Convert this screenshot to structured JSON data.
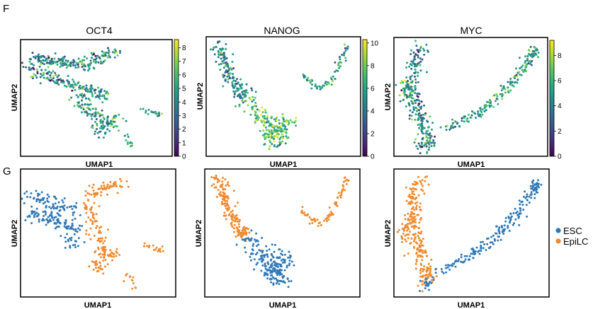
{
  "panel_labels": [
    "F",
    "G"
  ],
  "chart_data": [
    {
      "type": "scatter",
      "title": "OCT4",
      "xlabel": "UMAP1",
      "ylabel": "UMAP2",
      "colorbar": {
        "ticks": [
          0,
          1,
          2,
          3,
          4,
          5,
          6,
          7,
          8
        ],
        "range": [
          0,
          8.6
        ],
        "colormap": "viridis"
      },
      "clusters": [
        {
          "points": [
            [
              -5.5,
              6.2
            ],
            [
              -5.0,
              5.9
            ],
            [
              -4.4,
              6.3
            ],
            [
              -3.8,
              5.6
            ],
            [
              -3.2,
              6.0
            ],
            [
              -2.6,
              5.4
            ],
            [
              -2.0,
              5.8
            ],
            [
              -1.3,
              5.2
            ],
            [
              -0.7,
              5.5
            ],
            [
              0.0,
              5.0
            ],
            [
              0.6,
              5.6
            ],
            [
              1.2,
              6.3
            ],
            [
              1.9,
              6.8
            ],
            [
              2.6,
              7.0
            ]
          ],
          "spread": 0.45,
          "density": 14,
          "value_mean": 4.2,
          "value_sd": 1.5
        },
        {
          "points": [
            [
              -6.0,
              4.8
            ],
            [
              -5.2,
              4.2
            ],
            [
              -4.4,
              3.6
            ],
            [
              -3.6,
              3.2
            ],
            [
              -2.8,
              2.8
            ],
            [
              -2.0,
              2.4
            ],
            [
              -1.2,
              2.0
            ],
            [
              -0.3,
              1.8
            ],
            [
              0.4,
              1.4
            ],
            [
              1.1,
              1.0
            ],
            [
              1.8,
              0.6
            ]
          ],
          "spread": 0.45,
          "density": 14,
          "value_mean": 4.4,
          "value_sd": 1.6
        },
        {
          "points": [
            [
              -1.0,
              1.0
            ],
            [
              -0.6,
              0.0
            ],
            [
              -0.2,
              -1.0
            ],
            [
              0.3,
              -1.8
            ],
            [
              0.8,
              -2.6
            ],
            [
              1.4,
              -3.0
            ],
            [
              2.0,
              -3.4
            ],
            [
              2.6,
              -3.0
            ],
            [
              3.0,
              -3.6
            ],
            [
              1.0,
              -4.2
            ],
            [
              1.6,
              -4.6
            ]
          ],
          "spread": 0.45,
          "density": 13,
          "value_mean": 4.8,
          "value_sd": 1.4
        },
        {
          "points": [
            [
              5.9,
              -1.4
            ],
            [
              6.3,
              -1.7
            ],
            [
              6.8,
              -1.9
            ],
            [
              7.2,
              -2.1
            ],
            [
              7.6,
              -2.3
            ]
          ],
          "spread": 0.15,
          "density": 4,
          "value_mean": 5.3,
          "value_sd": 1.0
        },
        {
          "points": [
            [
              4.0,
              -5.4
            ],
            [
              4.3,
              -6.2
            ],
            [
              4.6,
              -7.0
            ]
          ],
          "spread": 0.2,
          "density": 4,
          "value_mean": 5.5,
          "value_sd": 1.0
        }
      ],
      "domain": {
        "x": [
          -6.6,
          8.5
        ],
        "y": [
          -8.0,
          8.5
        ]
      }
    },
    {
      "type": "scatter",
      "title": "NANOG",
      "xlabel": "UMAP1",
      "ylabel": "UMAP2",
      "colorbar": {
        "ticks": [
          0,
          2,
          4,
          6,
          8,
          10
        ],
        "range": [
          0,
          10.3
        ],
        "colormap": "viridis"
      },
      "clusters": [
        {
          "points": [
            [
              -6.3,
              6.7
            ],
            [
              -6.0,
              6.0
            ],
            [
              -5.7,
              5.2
            ],
            [
              -5.5,
              4.3
            ],
            [
              -5.2,
              3.5
            ],
            [
              -4.9,
              2.7
            ],
            [
              -4.5,
              2.0
            ],
            [
              -4.1,
              1.4
            ],
            [
              -3.7,
              0.8
            ],
            [
              -3.4,
              0.2
            ]
          ],
          "spread": 0.42,
          "density": 16,
          "value_mean": 4.8,
          "value_sd": 1.6
        },
        {
          "points": [
            [
              -2.8,
              -0.4
            ],
            [
              -2.2,
              -1.4
            ],
            [
              -1.6,
              -2.4
            ],
            [
              -1.0,
              -3.3
            ],
            [
              -0.4,
              -4.3
            ],
            [
              0.2,
              -5.0
            ],
            [
              0.8,
              -5.7
            ],
            [
              -0.1,
              -3.8
            ],
            [
              0.9,
              -3.9
            ],
            [
              -0.7,
              -4.9
            ],
            [
              0.3,
              -2.6
            ],
            [
              1.2,
              -3.0
            ]
          ],
          "spread": 0.55,
          "density": 18,
          "value_mean": 7.5,
          "value_sd": 1.7
        },
        {
          "points": [
            [
              3.1,
              3.0
            ],
            [
              3.7,
              2.3
            ],
            [
              4.3,
              1.7
            ],
            [
              5.0,
              1.4
            ],
            [
              5.7,
              1.9
            ],
            [
              6.3,
              2.6
            ],
            [
              6.8,
              3.6
            ],
            [
              7.2,
              4.6
            ],
            [
              7.6,
              5.6
            ],
            [
              8.0,
              6.6
            ]
          ],
          "spread": 0.17,
          "density": 7,
          "value_mean": 5.8,
          "value_sd": 1.6
        }
      ],
      "domain": {
        "x": [
          -7.2,
          9.0
        ],
        "y": [
          -7.0,
          7.5
        ]
      }
    },
    {
      "type": "scatter",
      "title": "MYC",
      "xlabel": "UMAP1",
      "ylabel": "UMAP2",
      "colorbar": {
        "ticks": [
          0,
          2,
          4,
          6,
          8
        ],
        "range": [
          0,
          9.2
        ],
        "colormap": "viridis"
      },
      "clusters": [
        {
          "points": [
            [
              -4.0,
              7.4
            ],
            [
              -4.2,
              6.4
            ],
            [
              -4.4,
              5.4
            ],
            [
              -4.5,
              4.5
            ],
            [
              -4.6,
              3.5
            ],
            [
              -4.7,
              2.6
            ],
            [
              -4.6,
              1.6
            ],
            [
              -4.5,
              0.6
            ],
            [
              -4.3,
              -0.4
            ],
            [
              -4.0,
              -1.4
            ],
            [
              -3.7,
              -2.4
            ],
            [
              -3.4,
              -3.4
            ],
            [
              -3.2,
              -4.4
            ],
            [
              -3.0,
              -5.4
            ],
            [
              -3.3,
              -6.4
            ],
            [
              -3.6,
              -6.9
            ],
            [
              -2.8,
              -6.3
            ],
            [
              -5.4,
              0.0
            ],
            [
              -5.2,
              1.5
            ]
          ],
          "spread": 0.5,
          "density": 15,
          "value_mean": 4.6,
          "value_sd": 1.7
        },
        {
          "points": [
            [
              -0.6,
              -4.2
            ],
            [
              0.4,
              -3.6
            ],
            [
              1.4,
              -3.0
            ],
            [
              2.4,
              -2.2
            ],
            [
              3.3,
              -1.4
            ],
            [
              4.2,
              -0.6
            ],
            [
              5.0,
              0.4
            ],
            [
              5.7,
              1.4
            ],
            [
              6.4,
              2.4
            ],
            [
              7.0,
              3.4
            ],
            [
              7.6,
              4.4
            ],
            [
              8.2,
              5.4
            ],
            [
              8.7,
              6.3
            ],
            [
              9.1,
              7.0
            ]
          ],
          "spread": 0.36,
          "density": 13,
          "value_mean": 5.2,
          "value_sd": 1.5
        }
      ],
      "domain": {
        "x": [
          -6.3,
          10.0
        ],
        "y": [
          -7.8,
          8.5
        ]
      }
    },
    {
      "type": "scatter",
      "xlabel": "UMAP1",
      "ylabel": "UMAP2",
      "series_colors": {
        "ESC": "#2f78b7",
        "EpiLC": "#f08a2e"
      },
      "clusters": [
        {
          "label": "ESC",
          "points": [
            [
              -5.9,
              5.5
            ],
            [
              -5.1,
              5.0
            ],
            [
              -4.2,
              4.6
            ],
            [
              -3.3,
              4.2
            ],
            [
              -2.5,
              3.8
            ],
            [
              -1.6,
              3.4
            ],
            [
              -6.0,
              3.0
            ],
            [
              -5.2,
              2.6
            ],
            [
              -4.4,
              2.2
            ],
            [
              -3.6,
              1.8
            ],
            [
              -2.8,
              1.4
            ],
            [
              -2.0,
              1.0
            ],
            [
              -1.2,
              0.6
            ],
            [
              -1.6,
              -1.0
            ]
          ],
          "spread": 0.5,
          "density": 14
        },
        {
          "label": "EpiLC",
          "points": [
            [
              0.0,
              5.4
            ],
            [
              0.8,
              5.8
            ],
            [
              1.6,
              6.3
            ],
            [
              2.4,
              6.8
            ],
            [
              2.9,
              7.0
            ],
            [
              -0.1,
              3.8
            ],
            [
              0.3,
              2.6
            ],
            [
              0.6,
              1.4
            ],
            [
              0.9,
              0.2
            ],
            [
              1.2,
              -1.0
            ],
            [
              1.5,
              -2.2
            ],
            [
              2.0,
              -3.0
            ],
            [
              2.6,
              -2.6
            ],
            [
              0.6,
              -3.8
            ],
            [
              1.2,
              -4.4
            ]
          ],
          "spread": 0.45,
          "density": 13
        },
        {
          "label": "EpiLC",
          "points": [
            [
              5.9,
              -1.4
            ],
            [
              6.4,
              -1.7
            ],
            [
              6.9,
              -1.9
            ],
            [
              7.3,
              -2.1
            ]
          ],
          "spread": 0.15,
          "density": 4
        },
        {
          "label": "EpiLC",
          "points": [
            [
              4.0,
              -5.4
            ],
            [
              4.3,
              -6.3
            ],
            [
              4.6,
              -7.1
            ]
          ],
          "spread": 0.2,
          "density": 4
        }
      ],
      "domain": {
        "x": [
          -6.6,
          8.5
        ],
        "y": [
          -8.0,
          8.5
        ]
      }
    },
    {
      "type": "scatter",
      "xlabel": "UMAP1",
      "ylabel": "UMAP2",
      "series_colors": {
        "ESC": "#2f78b7",
        "EpiLC": "#f08a2e"
      },
      "clusters": [
        {
          "label": "EpiLC",
          "points": [
            [
              -6.3,
              6.7
            ],
            [
              -6.0,
              6.0
            ],
            [
              -5.7,
              5.2
            ],
            [
              -5.5,
              4.3
            ],
            [
              -5.2,
              3.5
            ],
            [
              -4.9,
              2.7
            ],
            [
              -4.5,
              2.0
            ],
            [
              -4.1,
              1.4
            ],
            [
              -3.7,
              0.8
            ],
            [
              -3.4,
              0.2
            ]
          ],
          "spread": 0.42,
          "density": 16
        },
        {
          "label": "ESC",
          "points": [
            [
              -2.8,
              -0.4
            ],
            [
              -2.2,
              -1.4
            ],
            [
              -1.6,
              -2.4
            ],
            [
              -1.0,
              -3.3
            ],
            [
              -0.4,
              -4.3
            ],
            [
              0.2,
              -5.0
            ],
            [
              0.8,
              -5.7
            ],
            [
              -0.1,
              -3.8
            ],
            [
              0.9,
              -3.9
            ],
            [
              -0.7,
              -4.9
            ],
            [
              0.3,
              -2.6
            ],
            [
              1.2,
              -3.0
            ]
          ],
          "spread": 0.55,
          "density": 18
        },
        {
          "label": "EpiLC",
          "points": [
            [
              3.1,
              3.0
            ],
            [
              3.7,
              2.3
            ],
            [
              4.3,
              1.7
            ],
            [
              5.0,
              1.4
            ],
            [
              5.7,
              1.9
            ],
            [
              6.3,
              2.6
            ],
            [
              6.8,
              3.6
            ],
            [
              7.2,
              4.6
            ],
            [
              7.6,
              5.6
            ],
            [
              8.0,
              6.6
            ]
          ],
          "spread": 0.17,
          "density": 7
        }
      ],
      "domain": {
        "x": [
          -7.2,
          9.0
        ],
        "y": [
          -7.0,
          7.5
        ]
      }
    },
    {
      "type": "scatter",
      "xlabel": "UMAP1",
      "ylabel": "UMAP2",
      "series_colors": {
        "ESC": "#2f78b7",
        "EpiLC": "#f08a2e"
      },
      "clusters": [
        {
          "label": "EpiLC",
          "points": [
            [
              -4.0,
              7.4
            ],
            [
              -4.2,
              6.4
            ],
            [
              -4.4,
              5.4
            ],
            [
              -4.5,
              4.5
            ],
            [
              -4.6,
              3.5
            ],
            [
              -4.7,
              2.6
            ],
            [
              -4.6,
              1.6
            ],
            [
              -4.5,
              0.6
            ],
            [
              -4.3,
              -0.4
            ],
            [
              -4.0,
              -1.4
            ],
            [
              -3.7,
              -2.4
            ],
            [
              -3.4,
              -3.4
            ],
            [
              -3.2,
              -4.4
            ],
            [
              -3.0,
              -5.4
            ],
            [
              -3.3,
              -6.4
            ],
            [
              -5.4,
              0.0
            ],
            [
              -5.2,
              1.5
            ]
          ],
          "spread": 0.5,
          "density": 15
        },
        {
          "label": "ESC",
          "points": [
            [
              -3.6,
              -6.9
            ],
            [
              -2.8,
              -6.3
            ],
            [
              -0.6,
              -4.2
            ],
            [
              0.4,
              -3.6
            ],
            [
              1.4,
              -3.0
            ],
            [
              2.4,
              -2.2
            ],
            [
              3.3,
              -1.4
            ],
            [
              4.2,
              -0.6
            ],
            [
              5.0,
              0.4
            ],
            [
              5.7,
              1.4
            ],
            [
              6.4,
              2.4
            ],
            [
              7.0,
              3.4
            ],
            [
              7.6,
              4.4
            ],
            [
              8.2,
              5.4
            ],
            [
              8.7,
              6.3
            ],
            [
              9.1,
              7.0
            ]
          ],
          "spread": 0.36,
          "density": 13
        }
      ],
      "domain": {
        "x": [
          -6.3,
          10.0
        ],
        "y": [
          -7.8,
          8.5
        ]
      }
    }
  ],
  "legend": {
    "items": [
      {
        "label": "ESC",
        "color": "#2f78b7"
      },
      {
        "label": "EpiLC",
        "color": "#f08a2e"
      }
    ]
  }
}
